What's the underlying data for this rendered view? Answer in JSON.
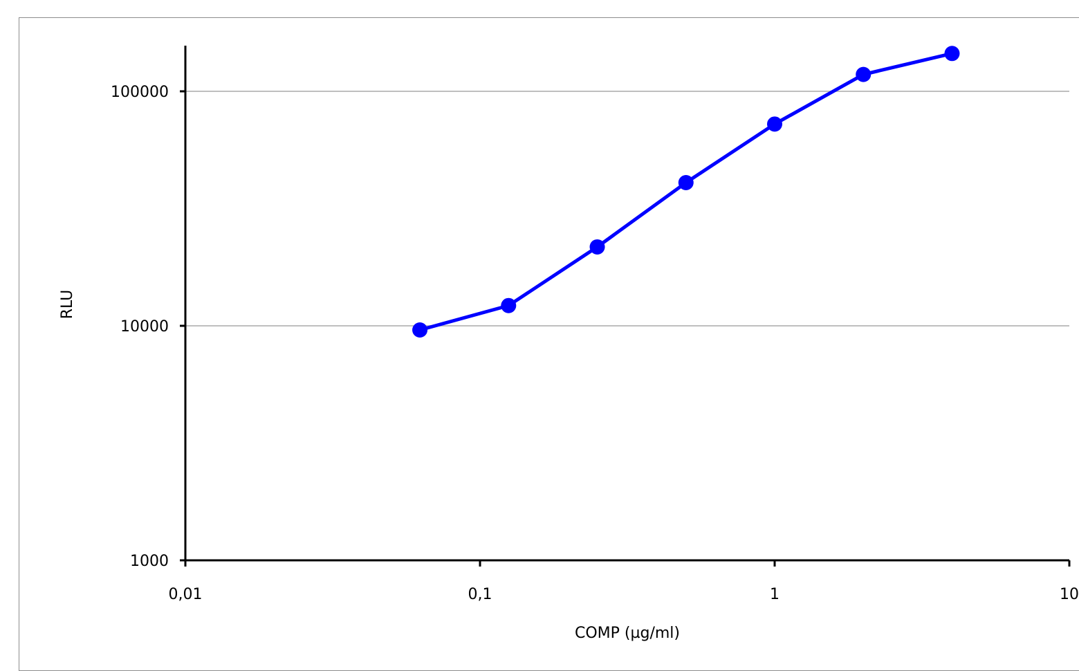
{
  "chart_data": {
    "type": "line",
    "title": "",
    "xlabel": "COMP (µg/ml)",
    "ylabel": "RLU",
    "x_scale": "log",
    "y_scale": "log",
    "xlim": [
      0.01,
      10
    ],
    "ylim": [
      1000,
      160000
    ],
    "x_ticks": [
      0.01,
      0.1,
      1,
      10
    ],
    "x_tick_labels": [
      "0,01",
      "0,1",
      "1",
      "10"
    ],
    "y_ticks": [
      1000,
      10000,
      100000
    ],
    "y_tick_labels": [
      "1000",
      "10000",
      "100000"
    ],
    "grid": "horizontal major gridlines",
    "legend": "none",
    "series": [
      {
        "color": "#0000ff",
        "marker": "circle",
        "points": [
          {
            "x": 0.0625,
            "y": 9600
          },
          {
            "x": 0.125,
            "y": 12200
          },
          {
            "x": 0.25,
            "y": 21700
          },
          {
            "x": 0.5,
            "y": 40800
          },
          {
            "x": 1,
            "y": 72500
          },
          {
            "x": 2,
            "y": 118000
          },
          {
            "x": 4,
            "y": 145000
          }
        ]
      }
    ]
  },
  "colors": {
    "series": "#0000ff",
    "axis": "#000000",
    "grid": "#bfbfbf",
    "frame": "#8c8c8c"
  }
}
